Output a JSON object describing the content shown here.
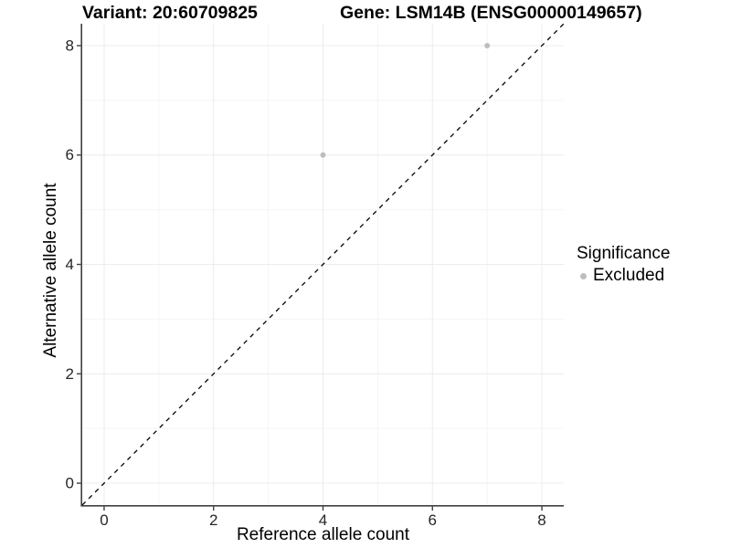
{
  "chart_data": {
    "type": "scatter",
    "title_left": "Variant: 20:60709825",
    "title_right": "Gene: LSM14B (ENSG00000149657)",
    "xlabel": "Reference allele count",
    "ylabel": "Alternative allele count",
    "xlim": [
      -0.4,
      8.4
    ],
    "ylim": [
      -0.4,
      8.4
    ],
    "xticks": [
      0,
      2,
      4,
      6,
      8
    ],
    "yticks": [
      0,
      2,
      4,
      6,
      8
    ],
    "x_minor_gridlines": [
      1,
      3,
      5,
      7
    ],
    "y_minor_gridlines": [
      1,
      3,
      5,
      7
    ],
    "grid": "on",
    "reference_line": {
      "type": "identity y=x",
      "style": "dashed",
      "color": "#000000"
    },
    "series": [
      {
        "name": "Excluded",
        "color": "#bebebe",
        "points": [
          {
            "x": 4,
            "y": 6
          },
          {
            "x": 7,
            "y": 8
          }
        ]
      }
    ],
    "legend": {
      "position": "right",
      "title": "Significance",
      "items": [
        {
          "label": "Excluded",
          "color": "#bebebe"
        }
      ]
    }
  },
  "colors": {
    "background": "#ffffff",
    "axis_line": "#404040",
    "tick_label": "#262626",
    "grid_major": "#ececec",
    "grid_minor": "#f5f5f5",
    "point": "#bebebe",
    "dashed_line": "#000000"
  }
}
